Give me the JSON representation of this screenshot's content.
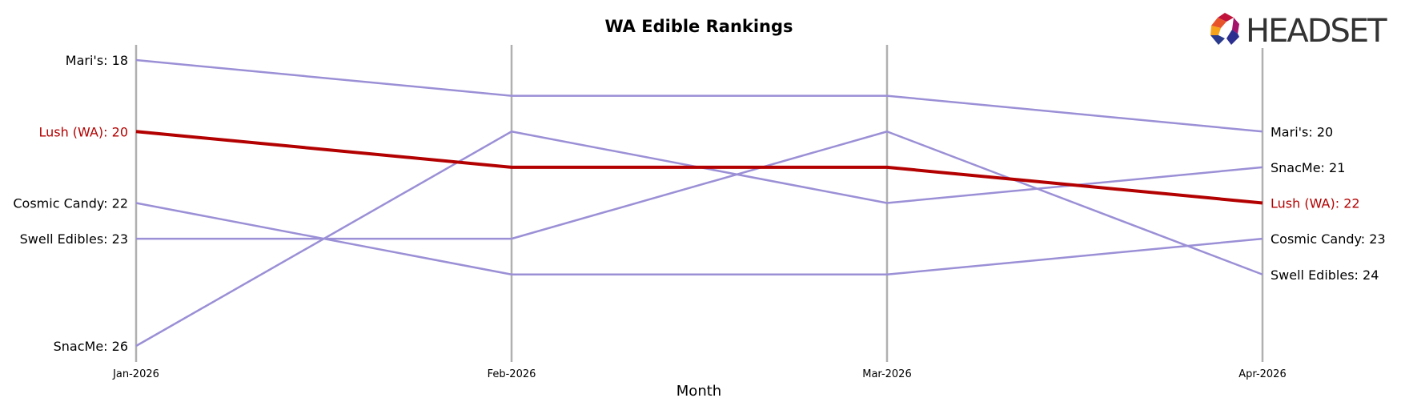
{
  "chart_data": {
    "type": "line",
    "title": "WA Edible Rankings",
    "xlabel": "Month",
    "ylabel": "",
    "x": [
      "Jan-2026",
      "Feb-2026",
      "Mar-2026",
      "Apr-2026"
    ],
    "y_inverted": true,
    "grid": "vertical lines at each month",
    "highlight_color": "#b30000",
    "series_color": "#9b8fd6",
    "axis_color": "#b0b0b0",
    "series": [
      {
        "name": "Mari's",
        "values": [
          18,
          19,
          19,
          20
        ],
        "highlight": false,
        "start_label": "Mari's: 18",
        "end_label": "Mari's: 20"
      },
      {
        "name": "SnacMe",
        "values": [
          26,
          20,
          22,
          21
        ],
        "highlight": false,
        "start_label": "SnacMe: 26",
        "end_label": "SnacMe: 21"
      },
      {
        "name": "Cosmic Candy",
        "values": [
          22,
          24,
          24,
          23
        ],
        "highlight": false,
        "start_label": "Cosmic Candy: 22",
        "end_label": "Cosmic Candy: 23"
      },
      {
        "name": "Swell Edibles",
        "values": [
          23,
          23,
          20,
          24
        ],
        "highlight": false,
        "start_label": "Swell Edibles: 23",
        "end_label": "Swell Edibles: 24"
      },
      {
        "name": "Lush (WA)",
        "values": [
          20,
          21,
          21,
          22
        ],
        "highlight": true,
        "start_label": "Lush (WA): 20",
        "end_label": "Lush (WA): 22"
      }
    ]
  },
  "logo": {
    "text": "HEADSET",
    "icon": "headset-hexagon-logo-icon"
  }
}
